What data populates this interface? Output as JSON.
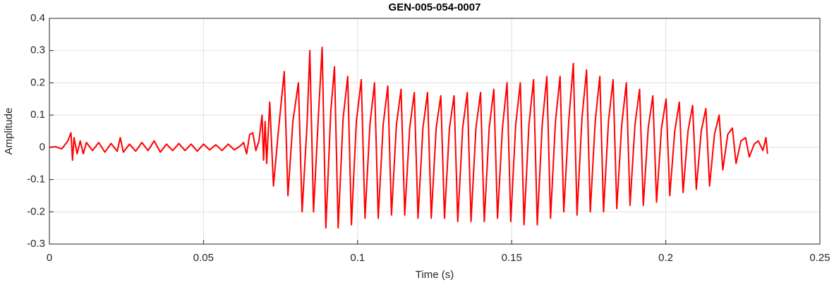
{
  "chart_data": {
    "type": "line",
    "title": "GEN-005-054-0007",
    "xlabel": "Time (s)",
    "ylabel": "Amplitude",
    "color": "#ff0000",
    "grid": true,
    "xlim": [
      0,
      0.25
    ],
    "xticks": [
      0,
      0.05,
      0.1,
      0.15,
      0.2,
      0.25
    ],
    "ylim": [
      -0.3,
      0.4
    ],
    "yticks": [
      -0.3,
      -0.2,
      -0.1,
      0,
      0.1,
      0.2,
      0.3,
      0.4
    ],
    "x": [
      0,
      0.002,
      0.004,
      0.006,
      0.007,
      0.0075,
      0.008,
      0.009,
      0.01,
      0.011,
      0.012,
      0.014,
      0.016,
      0.018,
      0.02,
      0.022,
      0.023,
      0.024,
      0.026,
      0.028,
      0.03,
      0.032,
      0.034,
      0.036,
      0.038,
      0.04,
      0.042,
      0.044,
      0.046,
      0.048,
      0.05,
      0.052,
      0.054,
      0.056,
      0.058,
      0.06,
      0.062,
      0.063,
      0.064,
      0.065,
      0.066,
      0.067,
      0.068,
      0.069,
      0.0695,
      0.07,
      0.0705,
      0.0715,
      0.0727,
      0.0743,
      0.0762,
      0.0774,
      0.079,
      0.0808,
      0.082,
      0.0836,
      0.0845,
      0.0857,
      0.0873,
      0.0885,
      0.0897,
      0.0913,
      0.0925,
      0.0937,
      0.0953,
      0.0968,
      0.098,
      0.0996,
      0.1012,
      0.1024,
      0.104,
      0.1055,
      0.1067,
      0.1083,
      0.1098,
      0.111,
      0.1126,
      0.1141,
      0.1153,
      0.1169,
      0.1184,
      0.1196,
      0.1212,
      0.1227,
      0.1239,
      0.1255,
      0.127,
      0.1282,
      0.1298,
      0.1313,
      0.1325,
      0.1341,
      0.1356,
      0.1368,
      0.1384,
      0.1399,
      0.1411,
      0.1427,
      0.1442,
      0.1454,
      0.147,
      0.1485,
      0.1497,
      0.1513,
      0.1528,
      0.154,
      0.1556,
      0.1571,
      0.1583,
      0.1599,
      0.1614,
      0.1626,
      0.1642,
      0.1657,
      0.1669,
      0.1685,
      0.17,
      0.1712,
      0.1728,
      0.1743,
      0.1755,
      0.1771,
      0.1786,
      0.1798,
      0.1814,
      0.1829,
      0.1841,
      0.1857,
      0.1872,
      0.1884,
      0.19,
      0.1915,
      0.1927,
      0.1943,
      0.1958,
      0.197,
      0.1986,
      0.2001,
      0.2013,
      0.2029,
      0.2044,
      0.2056,
      0.2072,
      0.2087,
      0.2099,
      0.2115,
      0.213,
      0.2142,
      0.2158,
      0.2173,
      0.2185,
      0.2201,
      0.2216,
      0.2228,
      0.2244,
      0.2259,
      0.2271,
      0.2287,
      0.23,
      0.2315,
      0.2325,
      0.233
    ],
    "values": [
      0,
      0.002,
      -0.005,
      0.02,
      0.045,
      -0.04,
      0.03,
      -0.02,
      0.02,
      -0.02,
      0.015,
      -0.01,
      0.015,
      -0.015,
      0.012,
      -0.012,
      0.03,
      -0.015,
      0.01,
      -0.012,
      0.015,
      -0.01,
      0.02,
      -0.015,
      0.01,
      -0.01,
      0.012,
      -0.01,
      0.01,
      -0.012,
      0.01,
      -0.008,
      0.008,
      -0.01,
      0.01,
      -0.008,
      0.005,
      0.015,
      -0.02,
      0.04,
      0.045,
      -0.01,
      0.02,
      0.1,
      -0.04,
      0.08,
      -0.05,
      0.14,
      -0.12,
      0.05,
      0.235,
      -0.15,
      0.08,
      0.2,
      -0.2,
      0.07,
      0.3,
      -0.2,
      0.1,
      0.31,
      -0.25,
      0.11,
      0.25,
      -0.25,
      0.09,
      0.22,
      -0.24,
      0.08,
      0.21,
      -0.22,
      0.07,
      0.2,
      -0.22,
      0.07,
      0.19,
      -0.21,
      0.07,
      0.18,
      -0.21,
      0.06,
      0.17,
      -0.22,
      0.06,
      0.17,
      -0.22,
      0.06,
      0.16,
      -0.22,
      0.06,
      0.16,
      -0.23,
      0.06,
      0.17,
      -0.23,
      0.06,
      0.17,
      -0.23,
      0.06,
      0.18,
      -0.22,
      0.06,
      0.2,
      -0.23,
      0.07,
      0.2,
      -0.24,
      0.07,
      0.21,
      -0.24,
      0.07,
      0.22,
      -0.22,
      0.08,
      0.22,
      -0.2,
      0.08,
      0.26,
      -0.21,
      0.09,
      0.24,
      -0.2,
      0.08,
      0.22,
      -0.2,
      0.08,
      0.21,
      -0.19,
      0.07,
      0.2,
      -0.18,
      0.07,
      0.18,
      -0.18,
      0.06,
      0.16,
      -0.17,
      0.06,
      0.15,
      -0.15,
      0.05,
      0.14,
      -0.14,
      0.05,
      0.13,
      -0.13,
      0.05,
      0.12,
      -0.12,
      0.04,
      0.1,
      -0.07,
      0.04,
      0.06,
      -0.05,
      0.02,
      0.03,
      -0.03,
      0.01,
      0.02,
      -0.01,
      0.03,
      -0.02
    ]
  }
}
